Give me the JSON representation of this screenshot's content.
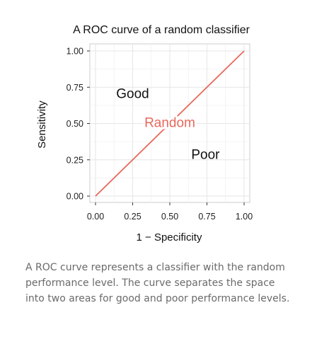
{
  "chart_data": {
    "type": "line",
    "title": "A ROC curve of a random classifier",
    "xlabel": "1 − Specificity",
    "ylabel": "Sensitivity",
    "xlim": [
      0,
      1
    ],
    "ylim": [
      0,
      1
    ],
    "x_ticks": [
      "0.00",
      "0.25",
      "0.50",
      "0.75",
      "1.00"
    ],
    "y_ticks": [
      "0.00",
      "0.25",
      "0.50",
      "0.75",
      "1.00"
    ],
    "grid": true,
    "series": [
      {
        "x": [
          0,
          1
        ],
        "y": [
          0,
          1
        ],
        "color": "#e8685b"
      }
    ],
    "annotations": [
      {
        "id": "good",
        "text": "Good",
        "x": 0.25,
        "y": 0.71,
        "color": "#111111"
      },
      {
        "id": "random",
        "text": "Random",
        "x": 0.5,
        "y": 0.51,
        "color": "#e8685b"
      },
      {
        "id": "poor",
        "text": "Poor",
        "x": 0.74,
        "y": 0.29,
        "color": "#111111"
      }
    ]
  },
  "caption": {
    "text": "A ROC curve represents a classifier with the random performance level. The curve separates the space into two areas for good and poor performance levels."
  }
}
